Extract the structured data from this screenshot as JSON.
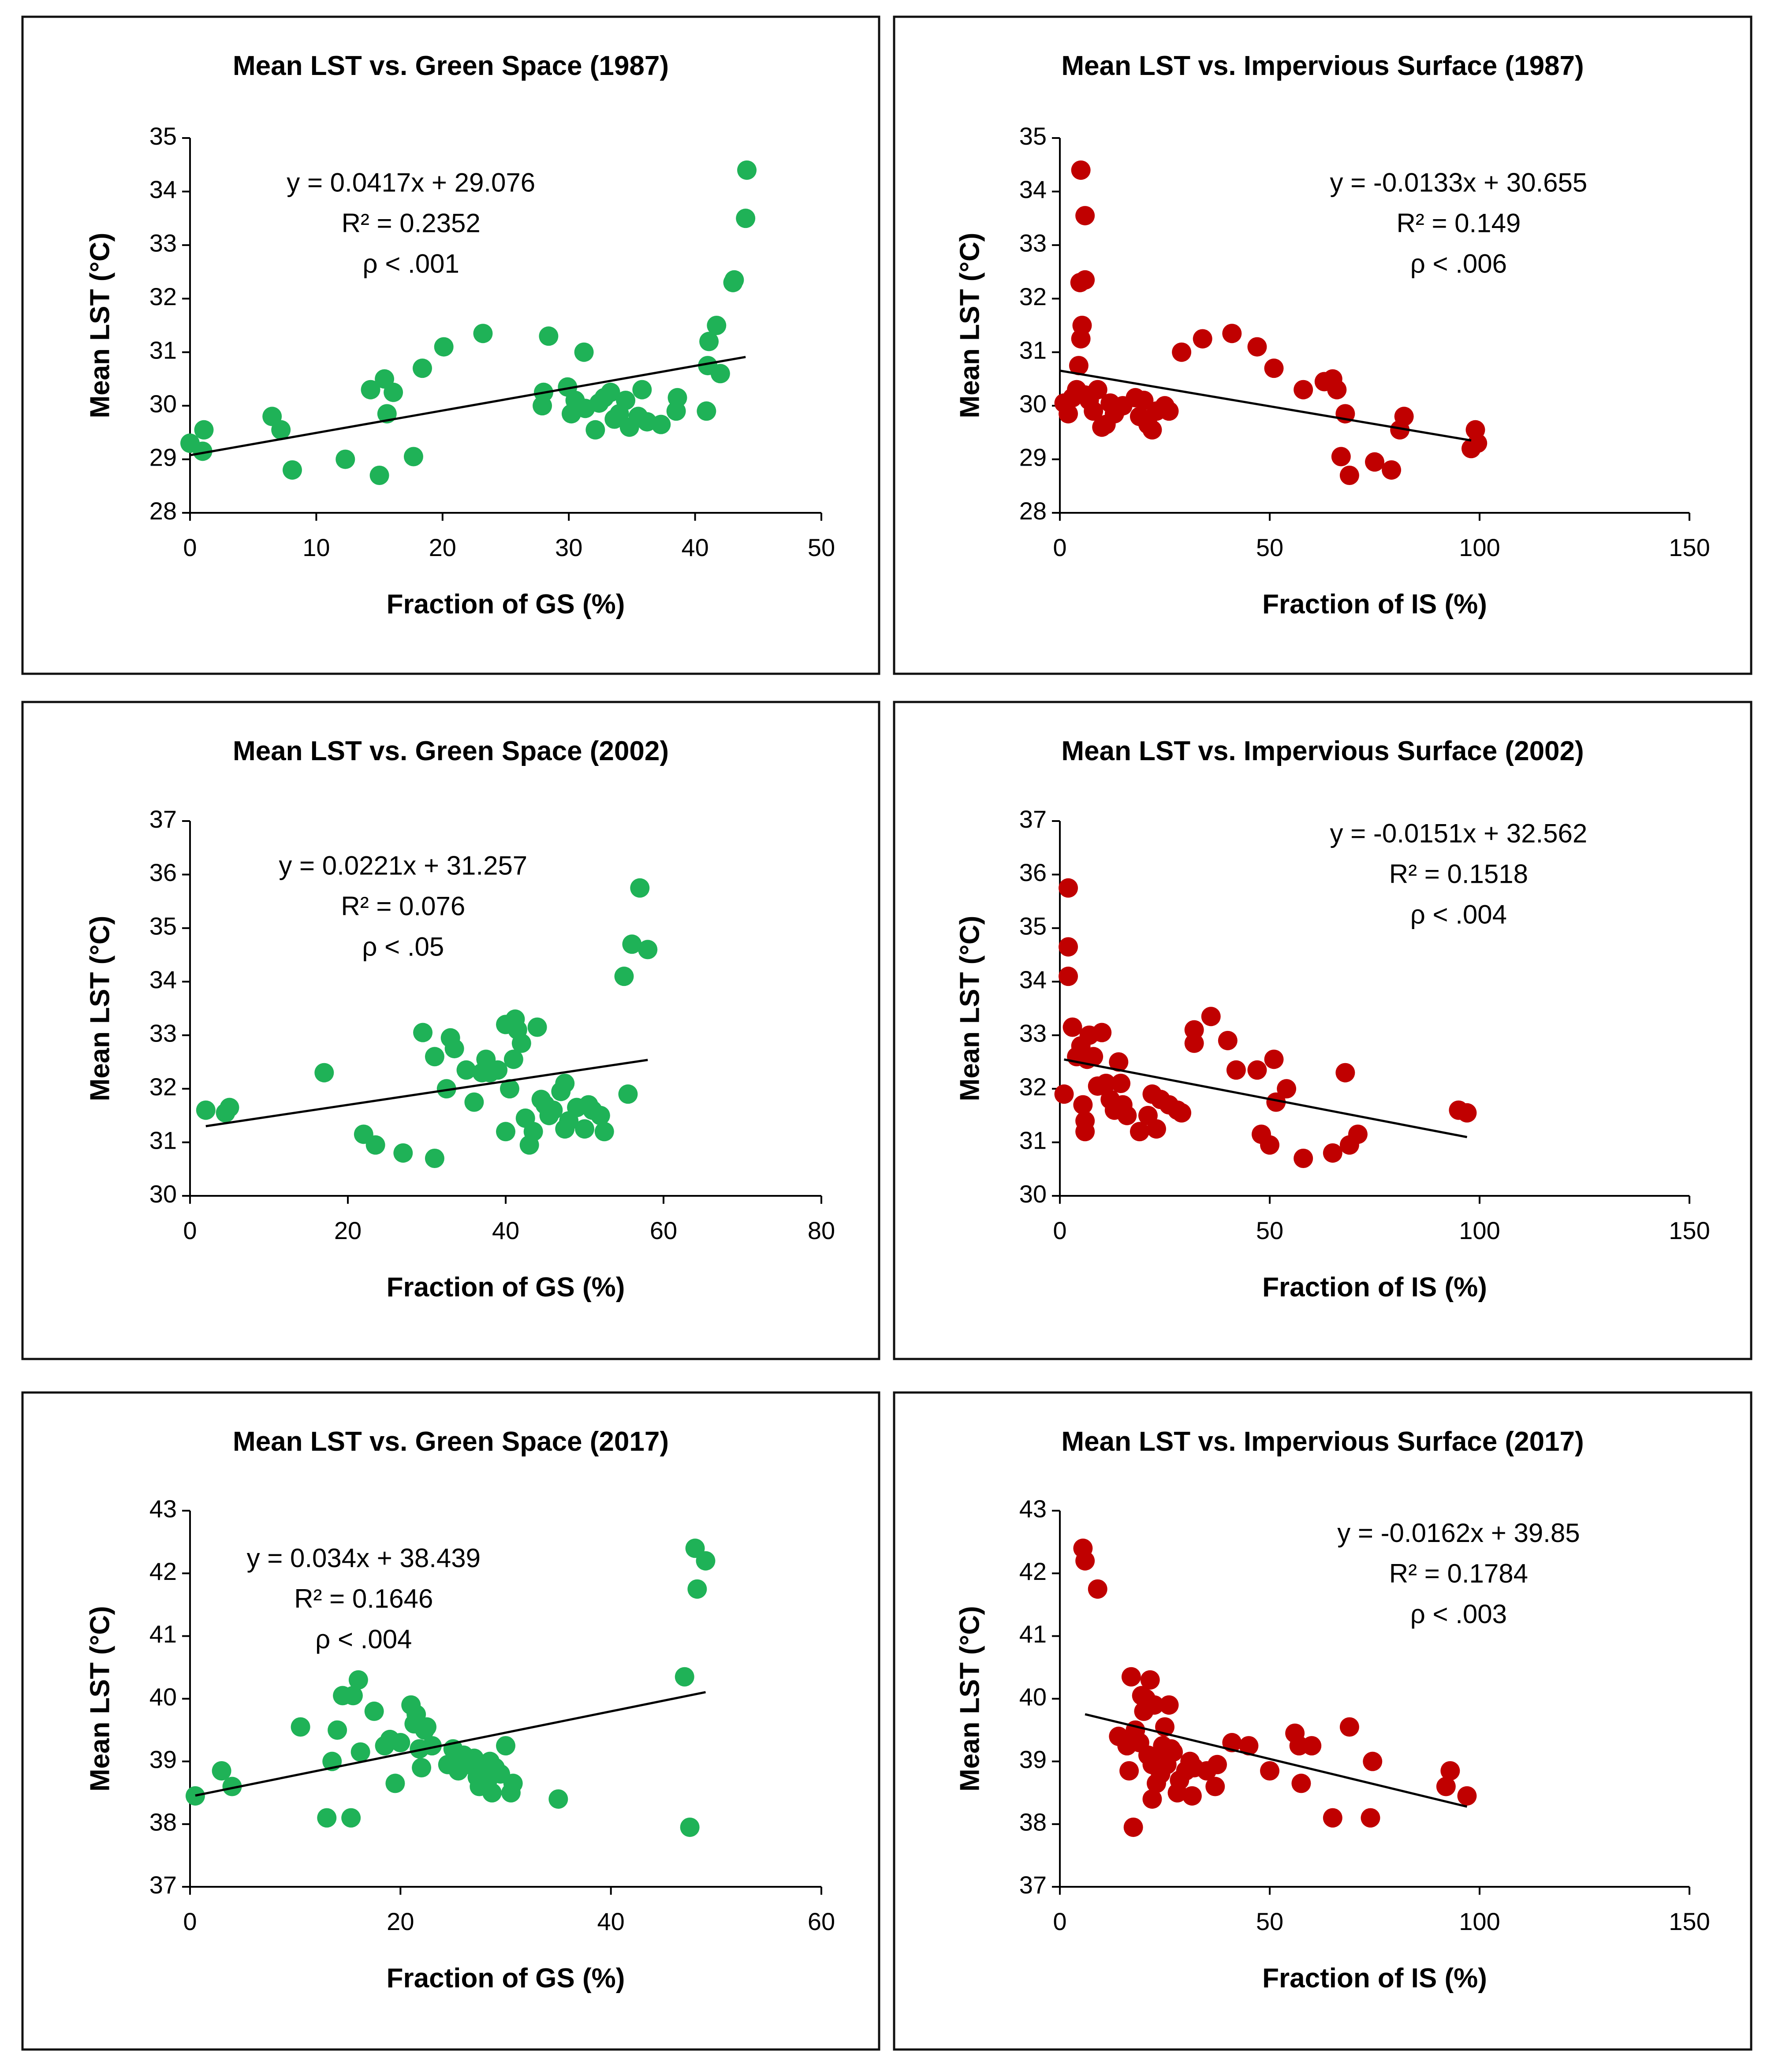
{
  "colors": {
    "gs_point": "#1fb257",
    "is_point": "#c00000",
    "frame": "#111111",
    "axis": "#000000"
  },
  "chart_data": [
    {
      "type": "scatter",
      "title": "Mean LST vs. Green Space (1987)",
      "xlabel": "Fraction of GS (%)",
      "ylabel": "Mean LST (°C)",
      "xlim": [
        0,
        50
      ],
      "xticks": [
        0,
        10,
        20,
        30,
        40,
        50
      ],
      "ylim": [
        28,
        35
      ],
      "yticks": [
        28,
        29,
        30,
        31,
        32,
        33,
        34,
        35
      ],
      "point_color": "gs",
      "trendline": {
        "slope": 0.0417,
        "intercept": 29.076,
        "x_range": [
          0,
          44
        ]
      },
      "annotation": [
        "y = 0.0417x + 29.076",
        "R² = 0.2352",
        "ρ < .001"
      ],
      "annotation_pos": [
        17.5,
        34.0
      ],
      "points": [
        [
          0,
          29.3
        ],
        [
          1,
          29.15
        ],
        [
          1.1,
          29.55
        ],
        [
          6.5,
          29.8
        ],
        [
          7.2,
          29.55
        ],
        [
          8.1,
          28.8
        ],
        [
          12.3,
          29.0
        ],
        [
          14.3,
          30.3
        ],
        [
          15,
          28.7
        ],
        [
          15.4,
          30.5
        ],
        [
          15.6,
          29.85
        ],
        [
          16.1,
          30.25
        ],
        [
          17.7,
          29.05
        ],
        [
          18.4,
          30.7
        ],
        [
          20.1,
          31.1
        ],
        [
          23.2,
          31.35
        ],
        [
          27.9,
          30.0
        ],
        [
          28,
          30.25
        ],
        [
          28.4,
          31.3
        ],
        [
          29.9,
          30.35
        ],
        [
          30.2,
          29.85
        ],
        [
          30.5,
          30.1
        ],
        [
          31.2,
          31.0
        ],
        [
          31.3,
          29.95
        ],
        [
          32.1,
          29.55
        ],
        [
          32.4,
          30.05
        ],
        [
          32.8,
          30.15
        ],
        [
          33.3,
          30.25
        ],
        [
          33.6,
          29.75
        ],
        [
          34,
          29.85
        ],
        [
          34.5,
          30.1
        ],
        [
          34.8,
          29.6
        ],
        [
          35.5,
          29.8
        ],
        [
          35.8,
          30.3
        ],
        [
          36.2,
          29.7
        ],
        [
          37.3,
          29.65
        ],
        [
          38.5,
          29.9
        ],
        [
          38.6,
          30.15
        ],
        [
          40.9,
          29.9
        ],
        [
          41,
          30.75
        ],
        [
          41.1,
          31.2
        ],
        [
          41.7,
          31.5
        ],
        [
          42,
          30.6
        ],
        [
          43,
          32.3
        ],
        [
          43.1,
          32.35
        ],
        [
          44,
          33.5
        ],
        [
          44.1,
          34.4
        ]
      ]
    },
    {
      "type": "scatter",
      "title": "Mean LST vs. Impervious Surface (1987)",
      "xlabel": "Fraction of IS (%)",
      "ylabel": "Mean LST (°C)",
      "xlim": [
        0,
        150
      ],
      "xticks": [
        0,
        50,
        100,
        150
      ],
      "ylim": [
        28,
        35
      ],
      "yticks": [
        28,
        29,
        30,
        31,
        32,
        33,
        34,
        35
      ],
      "point_color": "is",
      "trendline": {
        "slope": -0.0133,
        "intercept": 30.655,
        "x_range": [
          0,
          98
        ]
      },
      "annotation": [
        "y = -0.0133x + 30.655",
        "R² = 0.149",
        "ρ < .006"
      ],
      "annotation_pos": [
        95,
        34.0
      ],
      "points": [
        [
          1,
          30.05
        ],
        [
          2,
          29.85
        ],
        [
          3,
          30.15
        ],
        [
          4,
          30.3
        ],
        [
          4.5,
          30.75
        ],
        [
          5,
          31.25
        ],
        [
          5.3,
          31.5
        ],
        [
          4.8,
          32.3
        ],
        [
          6,
          32.35
        ],
        [
          6,
          33.55
        ],
        [
          5,
          34.4
        ],
        [
          6,
          30.2
        ],
        [
          7,
          30.1
        ],
        [
          8,
          29.9
        ],
        [
          9,
          30.3
        ],
        [
          10,
          29.6
        ],
        [
          11,
          29.65
        ],
        [
          12,
          30.05
        ],
        [
          13,
          29.85
        ],
        [
          15,
          30.0
        ],
        [
          18,
          30.15
        ],
        [
          19,
          29.8
        ],
        [
          20,
          30.1
        ],
        [
          21,
          29.65
        ],
        [
          22,
          29.55
        ],
        [
          23,
          29.9
        ],
        [
          25,
          30.0
        ],
        [
          26,
          29.9
        ],
        [
          29,
          31.0
        ],
        [
          34,
          31.25
        ],
        [
          41,
          31.35
        ],
        [
          47,
          31.1
        ],
        [
          51,
          30.7
        ],
        [
          58,
          30.3
        ],
        [
          63,
          30.45
        ],
        [
          65,
          30.5
        ],
        [
          66,
          30.3
        ],
        [
          67,
          29.05
        ],
        [
          68,
          29.85
        ],
        [
          69,
          28.7
        ],
        [
          75,
          28.95
        ],
        [
          79,
          28.8
        ],
        [
          81,
          29.55
        ],
        [
          82,
          29.8
        ],
        [
          98,
          29.2
        ],
        [
          99,
          29.55
        ],
        [
          99.5,
          29.3
        ]
      ]
    },
    {
      "type": "scatter",
      "title": "Mean LST vs. Green Space (2002)",
      "xlabel": "Fraction of GS (%)",
      "ylabel": "Mean LST (°C)",
      "xlim": [
        0,
        80
      ],
      "xticks": [
        0,
        20,
        40,
        60,
        80
      ],
      "ylim": [
        30,
        37
      ],
      "yticks": [
        30,
        31,
        32,
        33,
        34,
        35,
        36,
        37
      ],
      "point_color": "gs",
      "trendline": {
        "slope": 0.0221,
        "intercept": 31.257,
        "x_range": [
          2,
          58
        ]
      },
      "annotation": [
        "y = 0.0221x + 31.257",
        "R² = 0.076",
        "ρ < .05"
      ],
      "annotation_pos": [
        27,
        36.0
      ],
      "points": [
        [
          2,
          31.6
        ],
        [
          4.5,
          31.55
        ],
        [
          5,
          31.65
        ],
        [
          17,
          32.3
        ],
        [
          22,
          31.15
        ],
        [
          23.5,
          30.95
        ],
        [
          27,
          30.8
        ],
        [
          29.5,
          33.05
        ],
        [
          31,
          32.6
        ],
        [
          31,
          30.7
        ],
        [
          32.5,
          32.0
        ],
        [
          33,
          32.95
        ],
        [
          33.5,
          32.75
        ],
        [
          35,
          32.35
        ],
        [
          36,
          31.75
        ],
        [
          37,
          32.3
        ],
        [
          37.5,
          32.55
        ],
        [
          38,
          32.3
        ],
        [
          39,
          32.35
        ],
        [
          40,
          33.2
        ],
        [
          40,
          31.2
        ],
        [
          40.5,
          32.0
        ],
        [
          41,
          32.55
        ],
        [
          41.2,
          33.3
        ],
        [
          41.5,
          33.1
        ],
        [
          42,
          32.85
        ],
        [
          42.5,
          31.45
        ],
        [
          43,
          30.95
        ],
        [
          43.5,
          31.2
        ],
        [
          44,
          33.15
        ],
        [
          44.5,
          31.8
        ],
        [
          45,
          31.7
        ],
        [
          45.5,
          31.5
        ],
        [
          46,
          31.6
        ],
        [
          47,
          31.95
        ],
        [
          47.5,
          31.25
        ],
        [
          47.5,
          32.1
        ],
        [
          48,
          31.4
        ],
        [
          49,
          31.65
        ],
        [
          50,
          31.25
        ],
        [
          50.5,
          31.7
        ],
        [
          51,
          31.6
        ],
        [
          52,
          31.5
        ],
        [
          52.5,
          31.2
        ],
        [
          55,
          34.1
        ],
        [
          55.5,
          31.9
        ],
        [
          56,
          34.7
        ],
        [
          57,
          35.75
        ],
        [
          58,
          34.6
        ]
      ]
    },
    {
      "type": "scatter",
      "title": "Mean LST vs. Impervious Surface (2002)",
      "xlabel": "Fraction of IS (%)",
      "ylabel": "Mean LST (°C)",
      "xlim": [
        0,
        150
      ],
      "xticks": [
        0,
        50,
        100,
        150
      ],
      "ylim": [
        30,
        37
      ],
      "yticks": [
        30,
        31,
        32,
        33,
        34,
        35,
        36,
        37
      ],
      "point_color": "is",
      "trendline": {
        "slope": -0.0151,
        "intercept": 32.562,
        "x_range": [
          1,
          97
        ]
      },
      "annotation": [
        "y = -0.0151x + 32.562",
        "R² = 0.1518",
        "ρ < .004"
      ],
      "annotation_pos": [
        95,
        36.6
      ],
      "points": [
        [
          1,
          31.9
        ],
        [
          2,
          35.75
        ],
        [
          2,
          34.65
        ],
        [
          2,
          34.1
        ],
        [
          3,
          33.15
        ],
        [
          4,
          32.6
        ],
        [
          5,
          32.8
        ],
        [
          5.5,
          31.7
        ],
        [
          6,
          31.4
        ],
        [
          6,
          31.2
        ],
        [
          6.5,
          32.55
        ],
        [
          7,
          33.0
        ],
        [
          8,
          32.6
        ],
        [
          9,
          32.05
        ],
        [
          10,
          33.05
        ],
        [
          11,
          32.1
        ],
        [
          12,
          31.8
        ],
        [
          13,
          31.6
        ],
        [
          14,
          32.5
        ],
        [
          14.5,
          32.1
        ],
        [
          15,
          31.7
        ],
        [
          16,
          31.5
        ],
        [
          19,
          31.2
        ],
        [
          21,
          31.5
        ],
        [
          22,
          31.9
        ],
        [
          23,
          31.25
        ],
        [
          24,
          31.8
        ],
        [
          26,
          31.7
        ],
        [
          28,
          31.6
        ],
        [
          29,
          31.55
        ],
        [
          32,
          33.1
        ],
        [
          32,
          32.85
        ],
        [
          36,
          33.35
        ],
        [
          40,
          32.9
        ],
        [
          42,
          32.35
        ],
        [
          47,
          32.35
        ],
        [
          48,
          31.15
        ],
        [
          50,
          30.95
        ],
        [
          51,
          32.55
        ],
        [
          51.5,
          31.75
        ],
        [
          54,
          32.0
        ],
        [
          58,
          30.7
        ],
        [
          65,
          30.8
        ],
        [
          68,
          32.3
        ],
        [
          69,
          30.95
        ],
        [
          71,
          31.15
        ],
        [
          95,
          31.6
        ],
        [
          97,
          31.55
        ]
      ]
    },
    {
      "type": "scatter",
      "title": "Mean LST vs. Green Space (2017)",
      "xlabel": "Fraction of GS (%)",
      "ylabel": "Mean LST (°C)",
      "xlim": [
        0,
        60
      ],
      "xticks": [
        0,
        20,
        40,
        60
      ],
      "ylim": [
        37,
        43
      ],
      "yticks": [
        37,
        38,
        39,
        40,
        41,
        42,
        43
      ],
      "point_color": "gs",
      "trendline": {
        "slope": 0.034,
        "intercept": 38.439,
        "x_range": [
          0.5,
          49
        ]
      },
      "annotation": [
        "y = 0.034x + 38.439",
        "R² = 0.1646",
        "ρ < .004"
      ],
      "annotation_pos": [
        16.5,
        42.1
      ],
      "points": [
        [
          0.5,
          38.45
        ],
        [
          3,
          38.85
        ],
        [
          4,
          38.6
        ],
        [
          10.5,
          39.55
        ],
        [
          13,
          38.1
        ],
        [
          13.5,
          39.0
        ],
        [
          14,
          39.5
        ],
        [
          14.5,
          40.05
        ],
        [
          15.3,
          38.1
        ],
        [
          15.5,
          40.05
        ],
        [
          16,
          40.3
        ],
        [
          16.2,
          39.15
        ],
        [
          17.5,
          39.8
        ],
        [
          18.5,
          39.25
        ],
        [
          19,
          39.35
        ],
        [
          19.5,
          38.65
        ],
        [
          20,
          39.3
        ],
        [
          21,
          39.9
        ],
        [
          21.3,
          39.6
        ],
        [
          21.5,
          39.75
        ],
        [
          21.8,
          39.2
        ],
        [
          22,
          38.9
        ],
        [
          22.3,
          39.5
        ],
        [
          22.5,
          39.55
        ],
        [
          23,
          39.25
        ],
        [
          24.5,
          38.95
        ],
        [
          25,
          39.2
        ],
        [
          25.5,
          38.85
        ],
        [
          26,
          39.1
        ],
        [
          26.5,
          38.95
        ],
        [
          27,
          39.05
        ],
        [
          27.3,
          38.75
        ],
        [
          27.5,
          38.6
        ],
        [
          28,
          38.8
        ],
        [
          28.3,
          38.7
        ],
        [
          28.5,
          39.0
        ],
        [
          28.7,
          38.5
        ],
        [
          29,
          38.9
        ],
        [
          29.5,
          38.8
        ],
        [
          30,
          39.25
        ],
        [
          30.5,
          38.5
        ],
        [
          30.7,
          38.65
        ],
        [
          35,
          38.4
        ],
        [
          47,
          40.35
        ],
        [
          47.5,
          37.95
        ],
        [
          48,
          42.4
        ],
        [
          48.2,
          41.75
        ],
        [
          49,
          42.2
        ]
      ]
    },
    {
      "type": "scatter",
      "title": "Mean LST vs. Impervious Surface (2017)",
      "xlabel": "Fraction of IS (%)",
      "ylabel": "Mean LST (°C)",
      "xlim": [
        0,
        150
      ],
      "xticks": [
        0,
        50,
        100,
        150
      ],
      "ylim": [
        37,
        43
      ],
      "yticks": [
        37,
        38,
        39,
        40,
        41,
        42,
        43
      ],
      "point_color": "is",
      "trendline": {
        "slope": -0.0162,
        "intercept": 39.85,
        "x_range": [
          6,
          97
        ]
      },
      "annotation": [
        "y = -0.0162x + 39.85",
        "R² = 0.1784",
        "ρ < .003"
      ],
      "annotation_pos": [
        95,
        42.5
      ],
      "points": [
        [
          5.5,
          42.4
        ],
        [
          6,
          42.2
        ],
        [
          9,
          41.75
        ],
        [
          14,
          39.4
        ],
        [
          16,
          39.25
        ],
        [
          16.5,
          38.85
        ],
        [
          17,
          40.35
        ],
        [
          17.5,
          37.95
        ],
        [
          18,
          39.5
        ],
        [
          19,
          39.3
        ],
        [
          19.5,
          40.05
        ],
        [
          20,
          39.8
        ],
        [
          20.5,
          40.0
        ],
        [
          21,
          39.1
        ],
        [
          21.5,
          40.3
        ],
        [
          22,
          38.4
        ],
        [
          22,
          38.95
        ],
        [
          22.5,
          39.9
        ],
        [
          23,
          38.65
        ],
        [
          23.5,
          39.05
        ],
        [
          24,
          38.8
        ],
        [
          24.5,
          39.25
        ],
        [
          25,
          39.55
        ],
        [
          25.5,
          38.95
        ],
        [
          26,
          39.9
        ],
        [
          26.5,
          39.2
        ],
        [
          27,
          39.15
        ],
        [
          28,
          38.5
        ],
        [
          28.5,
          38.7
        ],
        [
          30,
          38.85
        ],
        [
          31,
          39.0
        ],
        [
          31.5,
          38.45
        ],
        [
          32,
          38.9
        ],
        [
          35,
          38.85
        ],
        [
          37,
          38.6
        ],
        [
          37.5,
          38.95
        ],
        [
          41,
          39.3
        ],
        [
          45,
          39.25
        ],
        [
          50,
          38.85
        ],
        [
          56,
          39.45
        ],
        [
          57,
          39.25
        ],
        [
          57.5,
          38.65
        ],
        [
          60,
          39.25
        ],
        [
          65,
          38.1
        ],
        [
          69,
          39.55
        ],
        [
          74,
          38.1
        ],
        [
          74.5,
          39.0
        ],
        [
          92,
          38.6
        ],
        [
          93,
          38.85
        ],
        [
          97,
          38.45
        ]
      ]
    }
  ]
}
